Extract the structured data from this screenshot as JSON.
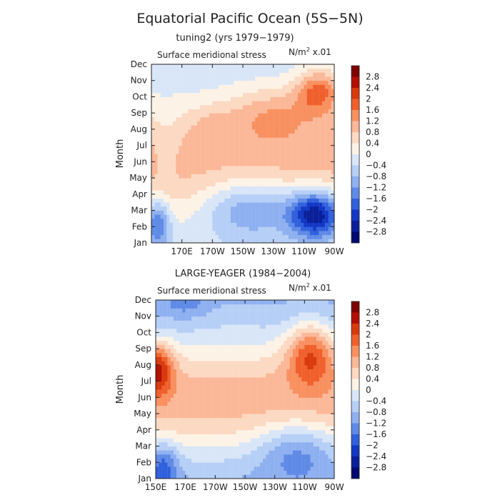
{
  "figure": {
    "title": "Equatorial Pacific Ocean (5S−5N)"
  },
  "colorbar": {
    "levels": [
      "2.8",
      "2.4",
      "2",
      "1.6",
      "1.2",
      "0.8",
      "0.4",
      "0",
      "−0.4",
      "−0.8",
      "−1.2",
      "−1.6",
      "−2",
      "−2.4",
      "−2.8"
    ],
    "colors": [
      "#7f0000",
      "#b30f00",
      "#d83a0e",
      "#f0602c",
      "#f89060",
      "#fbb898",
      "#fcd9c2",
      "#fdf2e6",
      "#d8e6f8",
      "#b6cff6",
      "#8fb0f0",
      "#5f8ae6",
      "#3160dc",
      "#1238c4",
      "#0a1f9a",
      "#000a70"
    ]
  },
  "chart_data": [
    {
      "type": "heatmap",
      "subtitle": "tuning2 (yrs 1979−1979)",
      "variable": "Surface meridional stress",
      "units_base": "N/m",
      "units_exp": "2",
      "units_scale": " x.01",
      "ylabel": "Month",
      "y_ticks": [
        "Jan",
        "Feb",
        "Mar",
        "Apr",
        "May",
        "Jun",
        "Jul",
        "Aug",
        "Sep",
        "Oct",
        "Nov",
        "Dec"
      ],
      "x_ticks": [
        "170E",
        "170W",
        "150W",
        "130W",
        "110W",
        "90W"
      ],
      "x_range": [
        "150E",
        "90W"
      ],
      "lon_ticks": [
        170,
        190,
        210,
        230,
        250,
        270
      ],
      "lon_range": [
        150,
        270
      ],
      "value_range": [
        -2.8,
        2.8
      ]
    },
    {
      "type": "heatmap",
      "subtitle": "LARGE-YEAGER (1984−2004)",
      "variable": "Surface meridional stress",
      "units_base": "N/m",
      "units_exp": "2",
      "units_scale": " x.01",
      "ylabel": "Month",
      "y_ticks": [
        "Jan",
        "Feb",
        "Mar",
        "Apr",
        "May",
        "Jun",
        "Jul",
        "Aug",
        "Sep",
        "Oct",
        "Nov",
        "Dec"
      ],
      "x_ticks": [
        "150E",
        "170E",
        "170W",
        "150W",
        "130W",
        "110W",
        "90W"
      ],
      "x_range": [
        "150E",
        "90W"
      ],
      "lon_ticks": [
        150,
        170,
        190,
        210,
        230,
        250,
        270
      ],
      "lon_range": [
        150,
        270
      ],
      "value_range": [
        -2.8,
        2.8
      ]
    }
  ]
}
